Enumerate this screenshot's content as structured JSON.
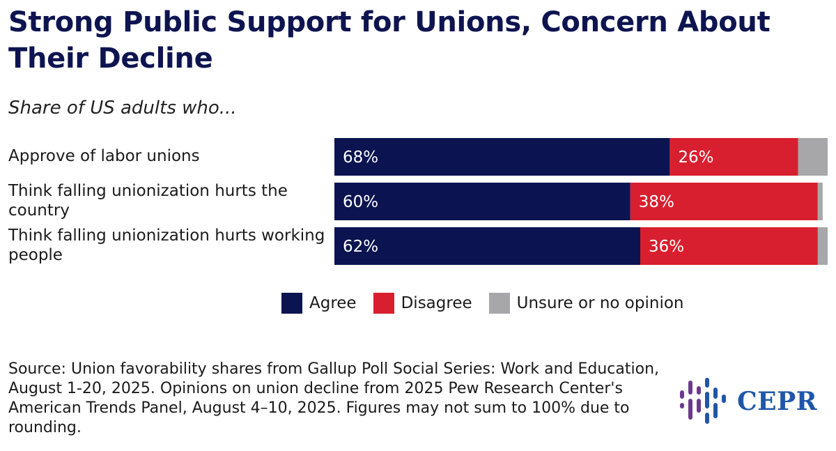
{
  "title": "Strong Public Support for Unions, Concern About Their Decline",
  "subtitle": "Share of US adults who...",
  "colors": {
    "agree": "#0b1450",
    "disagree": "#d81f2f",
    "unsure": "#a7a7aa",
    "title": "#0d1450",
    "logo": "#1f56a8"
  },
  "chart_data": {
    "type": "bar",
    "orientation": "horizontal",
    "stacked": true,
    "categories": [
      "Approve of labor unions",
      "Think falling unionization hurts the country",
      "Think falling unionization hurts working people"
    ],
    "series": [
      {
        "name": "Agree",
        "values": [
          68,
          60,
          62
        ],
        "labels": [
          "68%",
          "60%",
          "62%"
        ]
      },
      {
        "name": "Disagree",
        "values": [
          26,
          38,
          36
        ],
        "labels": [
          "26%",
          "38%",
          "36%"
        ]
      },
      {
        "name": "Unsure or no opinion",
        "values": [
          7,
          1,
          2
        ]
      }
    ],
    "xlim": [
      0,
      100
    ],
    "grid": false,
    "legend_position": "bottom-center"
  },
  "source": "Source: Union favorability shares from Gallup Poll Social Series: Work and Education, August 1-20, 2025. Opinions on union decline from 2025 Pew Research Center's American Trends Panel, August 4–10, 2025. Figures may not sum to 100% due to rounding.",
  "logo": {
    "text": "CEPR",
    "icon": "cepr-bars-icon"
  }
}
